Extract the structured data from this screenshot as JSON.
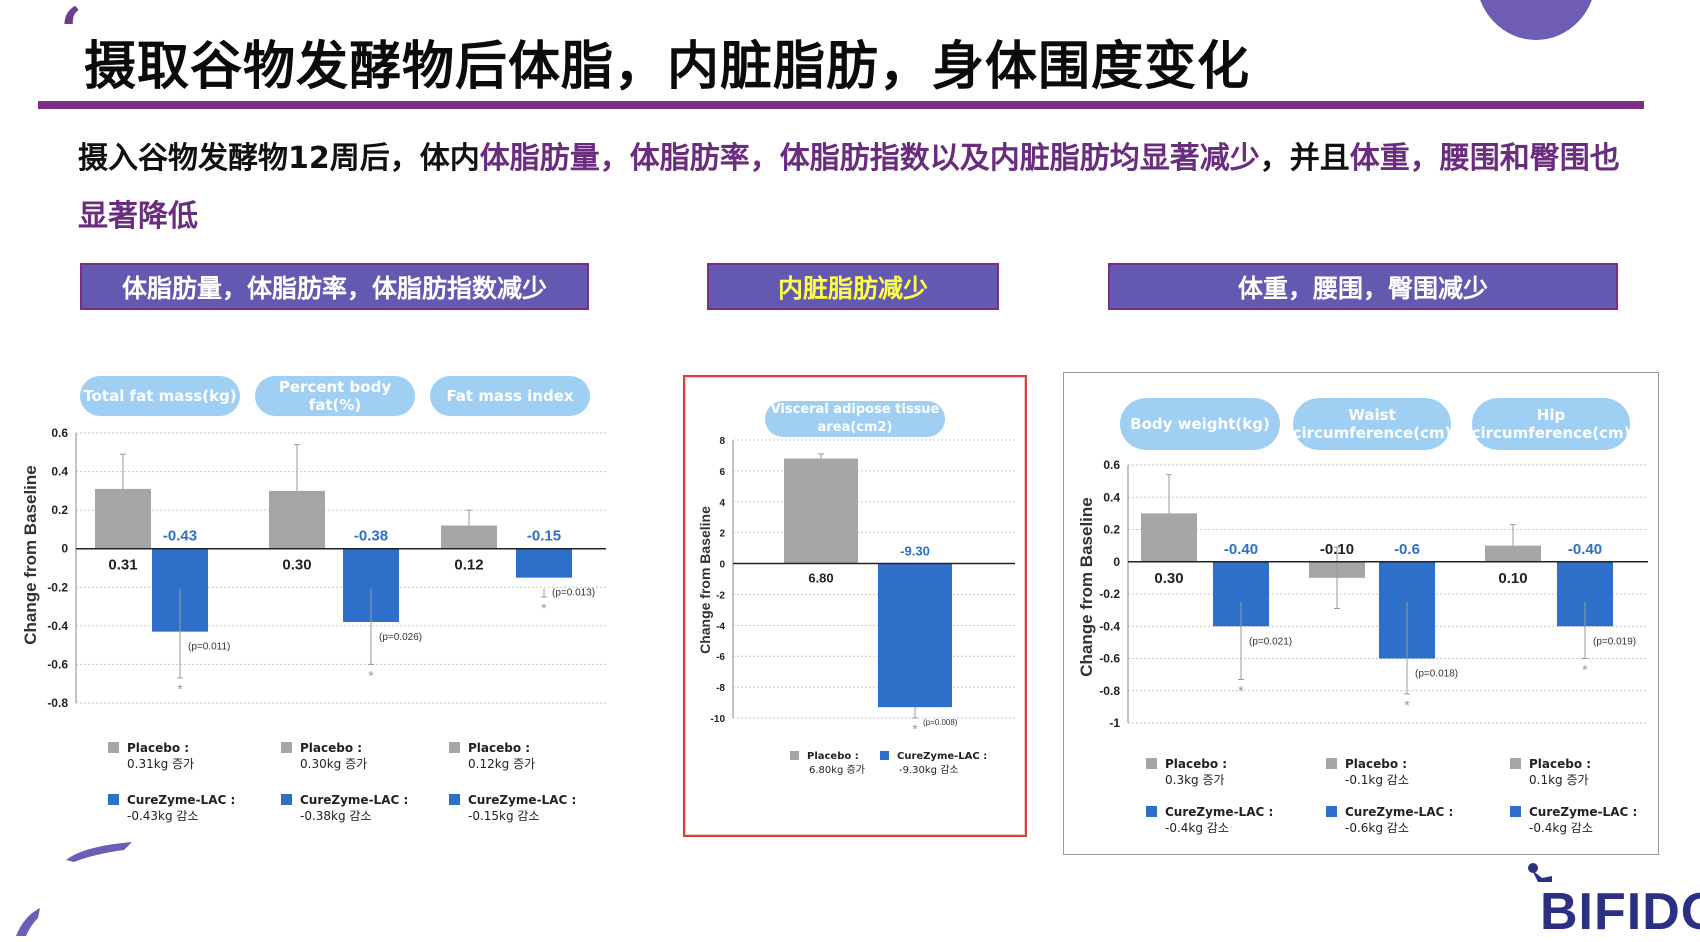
{
  "slide": {
    "title": "摄取谷物发酵物后体脂，内脏脂肪，身体围度变化",
    "summary_parts": [
      {
        "text": "摄入谷物发酵物12周后，体内",
        "highlight": false
      },
      {
        "text": "体脂肪量，体脂肪率，体脂肪指数以及内脏脂肪均显著减少",
        "highlight": true
      },
      {
        "text": "，并且",
        "highlight": false
      },
      {
        "text": "体重，腰围和臀围也显著降低",
        "highlight": true
      }
    ],
    "section_headers": [
      "体脂肪量，体脂肪率，体脂肪指数减少",
      "内脏脂肪减少",
      "体重，腰围，臀围减少"
    ],
    "brand": "BIFIDO",
    "colors": {
      "accent": "#7a2f82",
      "header_bg": "#6459b1",
      "pill": "#9fd0f3",
      "placebo": "#a6a6a6",
      "curezyme": "#2e6fca",
      "highlight": "#6a2d7e"
    }
  },
  "chart_data": [
    {
      "type": "bar",
      "ylabel": "Change from Baseline",
      "ylim": [
        -0.8,
        0.6
      ],
      "yticks": [
        "0.6",
        "0.4",
        "0.2",
        "0",
        "-0.2",
        "-0.4",
        "-0.6",
        "-0.8"
      ],
      "grid": true,
      "categories": [
        "Total fat mass(kg)",
        "Percent body fat(%)",
        "Fat mass index"
      ],
      "series": [
        {
          "name": "Placebo",
          "values": [
            0.31,
            0.3,
            0.12
          ],
          "labels": [
            "0.31",
            "0.30",
            "0.12"
          ]
        },
        {
          "name": "CureZyme-LAC",
          "values": [
            -0.43,
            -0.38,
            -0.15
          ],
          "labels": [
            "-0.43",
            "-0.38",
            "-0.15"
          ]
        }
      ],
      "error_tops": [
        0.49,
        0.54,
        0.2
      ],
      "error_bottoms": [
        -0.67,
        -0.6,
        -0.25
      ],
      "p_values": [
        "(p=0.011)",
        "(p=0.026)",
        "(p=0.013)"
      ],
      "significance_mark": "*",
      "legend": [
        {
          "placebo_label": "Placebo :",
          "placebo_value": "0.31kg 증가",
          "treat_label": "CureZyme-LAC :",
          "treat_value": "-0.43kg 감소"
        },
        {
          "placebo_label": "Placebo :",
          "placebo_value": "0.30kg 증가",
          "treat_label": "CureZyme-LAC :",
          "treat_value": "-0.38kg 감소"
        },
        {
          "placebo_label": "Placebo :",
          "placebo_value": "0.12kg 증가",
          "treat_label": "CureZyme-LAC :",
          "treat_value": "-0.15kg 감소"
        }
      ]
    },
    {
      "type": "bar",
      "ylabel": "Change from Baseline",
      "ylim": [
        -10,
        8
      ],
      "yticks": [
        "8",
        "6",
        "4",
        "2",
        "0",
        "-2",
        "-4",
        "-6",
        "-8",
        "-10"
      ],
      "grid": true,
      "categories": [
        "Visceral adipose tissue area(cm2)"
      ],
      "series": [
        {
          "name": "Placebo",
          "values": [
            6.8
          ],
          "labels": [
            "6.80"
          ]
        },
        {
          "name": "CureZyme-LAC",
          "values": [
            -9.3
          ],
          "labels": [
            "-9.30"
          ]
        }
      ],
      "error_tops": [
        7.1
      ],
      "error_bottoms": [
        -10
      ],
      "p_values": [
        "(p=0.008)"
      ],
      "significance_mark": "*",
      "legend": [
        {
          "placebo_label": "Placebo :",
          "placebo_value": "6.80kg 증가",
          "treat_label": "CureZyme-LAC :",
          "treat_value": "-9.30kg 감소"
        }
      ]
    },
    {
      "type": "bar",
      "ylabel": "Change from Baseline",
      "ylim": [
        -1,
        0.6
      ],
      "yticks": [
        "0.6",
        "0.4",
        "0.2",
        "0",
        "-0.2",
        "-0.4",
        "-0.6",
        "-0.8",
        "-1"
      ],
      "grid": true,
      "categories": [
        "Body weight(kg)",
        "Waist circumference(cm)",
        "Hip circumference(cm)"
      ],
      "series": [
        {
          "name": "Placebo",
          "values": [
            0.3,
            -0.1,
            0.1
          ],
          "labels": [
            "0.30",
            "-0.10",
            "0.10"
          ]
        },
        {
          "name": "CureZyme-LAC",
          "values": [
            -0.4,
            -0.6,
            -0.4
          ],
          "labels": [
            "-0.40",
            "-0.6",
            "-0.40"
          ]
        }
      ],
      "error_tops": [
        0.54,
        0.09,
        0.23
      ],
      "error_bottoms": [
        -0.73,
        -0.82,
        -0.6
      ],
      "placebo_error_bottoms": [
        null,
        -0.29,
        null
      ],
      "p_values": [
        "(p=0.021)",
        "(p=0.018)",
        "(p=0.019)"
      ],
      "significance_mark": "*",
      "legend": [
        {
          "placebo_label": "Placebo :",
          "placebo_value": "0.3kg 증가",
          "treat_label": "CureZyme-LAC :",
          "treat_value": "-0.4kg 감소"
        },
        {
          "placebo_label": "Placebo :",
          "placebo_value": "-0.1kg 감소",
          "treat_label": "CureZyme-LAC :",
          "treat_value": "-0.6kg 감소"
        },
        {
          "placebo_label": "Placebo :",
          "placebo_value": "0.1kg 증가",
          "treat_label": "CureZyme-LAC :",
          "treat_value": "-0.4kg 감소"
        }
      ]
    }
  ]
}
